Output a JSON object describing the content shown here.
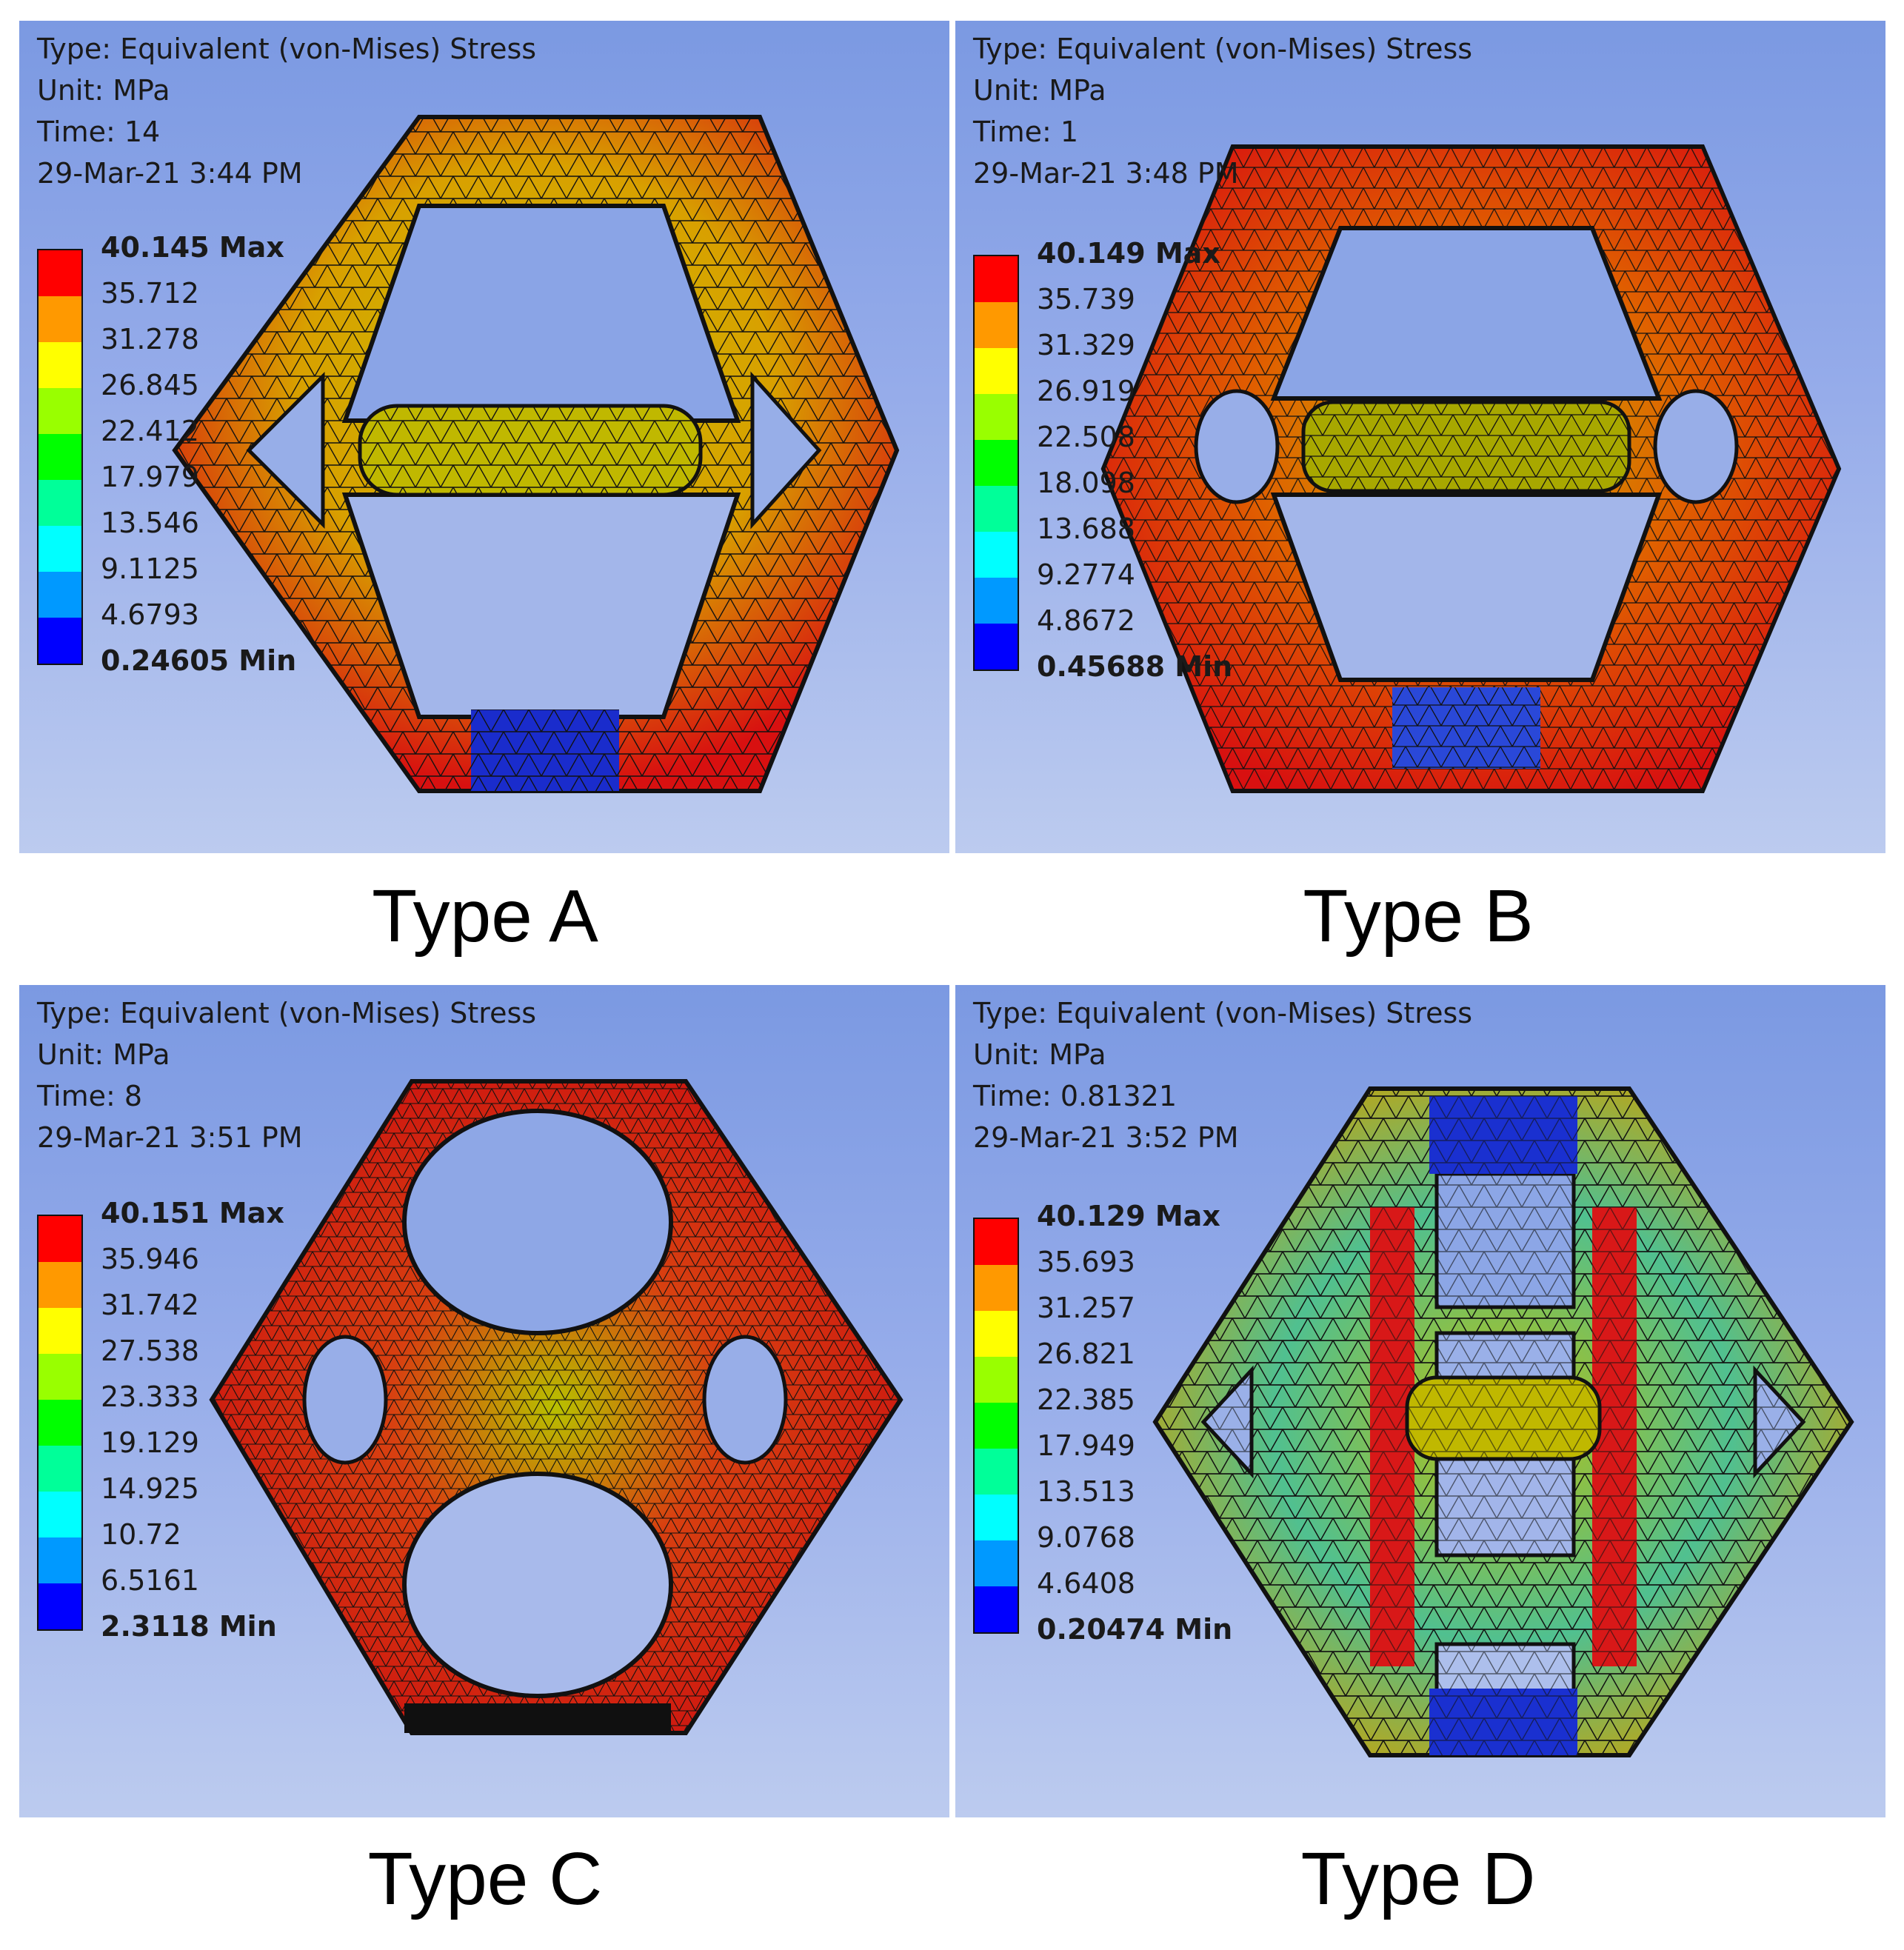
{
  "colors": {
    "legend": [
      "#ff0000",
      "#ff9900",
      "#ffff00",
      "#99ff00",
      "#00ff00",
      "#00ff99",
      "#00ffff",
      "#0099ff",
      "#0000ff"
    ],
    "background_top": "#7b99e2",
    "background_bottom": "#bccbef"
  },
  "panels": [
    {
      "id": "A",
      "caption": "Type A",
      "type_line": "Type: Equivalent (von-Mises) Stress",
      "unit_line": "Unit: MPa",
      "time_line": "Time: 14",
      "date_line": "29-Mar-21 3:44 PM",
      "legend": [
        "40.145 Max",
        "35.712",
        "31.278",
        "26.845",
        "22.412",
        "17.979",
        "13.546",
        "9.1125",
        "4.6793",
        "0.24605 Min"
      ]
    },
    {
      "id": "B",
      "caption": "Type B",
      "type_line": "Type: Equivalent (von-Mises) Stress",
      "unit_line": "Unit: MPa",
      "time_line": "Time: 1",
      "date_line": "29-Mar-21 3:48 PM",
      "legend": [
        "40.149 Max",
        "35.739",
        "31.329",
        "26.919",
        "22.508",
        "18.098",
        "13.688",
        "9.2774",
        "4.8672",
        "0.45688 Min"
      ]
    },
    {
      "id": "C",
      "caption": "Type C",
      "type_line": "Type: Equivalent (von-Mises) Stress",
      "unit_line": "Unit: MPa",
      "time_line": "Time: 8",
      "date_line": "29-Mar-21 3:51 PM",
      "legend": [
        "40.151 Max",
        "35.946",
        "31.742",
        "27.538",
        "23.333",
        "19.129",
        "14.925",
        "10.72",
        "6.5161",
        "2.3118 Min"
      ]
    },
    {
      "id": "D",
      "caption": "Type D",
      "type_line": "Type: Equivalent (von-Mises) Stress",
      "unit_line": "Unit: MPa",
      "time_line": "Time: 0.81321",
      "date_line": "29-Mar-21 3:52 PM",
      "legend": [
        "40.129 Max",
        "35.693",
        "31.257",
        "26.821",
        "22.385",
        "17.949",
        "13.513",
        "9.0768",
        "4.6408",
        "0.20474 Min"
      ]
    }
  ]
}
